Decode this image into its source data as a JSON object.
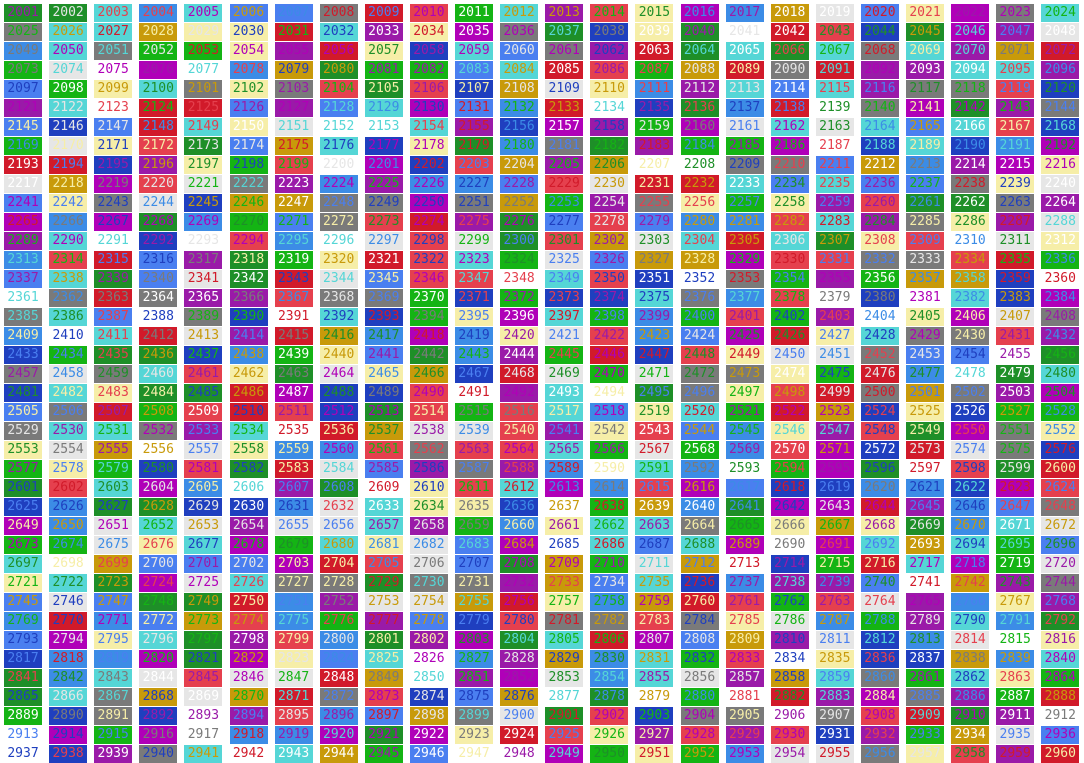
{
  "grid": {
    "first_number": 2001,
    "last_number": 2960,
    "columns": 24,
    "rows": 40
  },
  "palette": {
    "royal_blue": "#1f3fbf",
    "green": "#14b414",
    "sky_blue": "#3c8ce6",
    "red": "#d11a2a",
    "purple": "#9a1aa8",
    "gold": "#c89a0a",
    "pale_yellow": "#f6eea8",
    "white": "#ffffff",
    "gray": "#7a7a7a",
    "forest_green": "#1e8f28",
    "cyan": "#55d6d6",
    "cornflower": "#4a7ff0",
    "magenta": "#b000b8",
    "pink_red": "#e5404e",
    "light_gray": "#e6e6e6"
  }
}
